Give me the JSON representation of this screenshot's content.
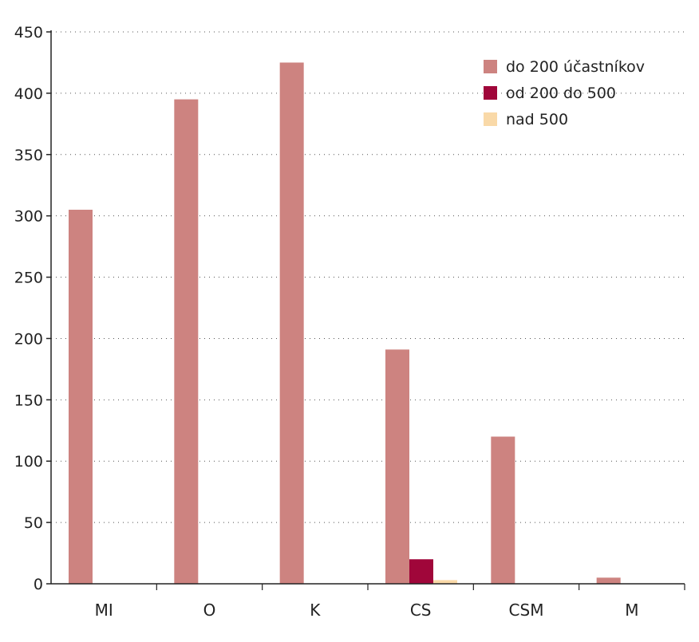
{
  "chart_data": {
    "type": "bar",
    "categories": [
      "MI",
      "O",
      "K",
      "CS",
      "CSM",
      "M"
    ],
    "series": [
      {
        "name": "do 200 účastníkov",
        "color": "#cd8380",
        "values": [
          305,
          395,
          425,
          191,
          120,
          5
        ]
      },
      {
        "name": "od 200 do 500",
        "color": "#a0063a",
        "values": [
          0,
          0,
          0,
          20,
          0,
          0
        ]
      },
      {
        "name": "nad 500",
        "color": "#f9d9a8",
        "values": [
          0,
          0,
          0,
          3,
          0,
          0
        ]
      }
    ],
    "ylim": [
      0,
      450
    ],
    "yticks": [
      0,
      50,
      100,
      150,
      200,
      250,
      300,
      350,
      400,
      450
    ],
    "grid": true,
    "grid_style": "dotted",
    "legend_position": "top-right",
    "title": "",
    "xlabel": "",
    "ylabel": ""
  }
}
